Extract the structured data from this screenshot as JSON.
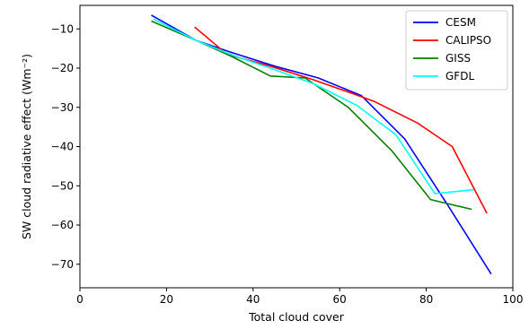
{
  "chart_data": {
    "type": "line",
    "title": "",
    "xlabel": "Total cloud cover",
    "ylabel": "SW cloud radiative effect (Wm⁻²)",
    "xlim": [
      0,
      100
    ],
    "ylim": [
      -76,
      -4
    ],
    "xticks": [
      0,
      20,
      40,
      60,
      80,
      100
    ],
    "yticks": [
      -10,
      -20,
      -30,
      -40,
      -50,
      -60,
      -70
    ],
    "grid": false,
    "legend_position": "top-right",
    "series": [
      {
        "name": "CESM",
        "color": "#0000ff",
        "x": [
          16.5,
          27,
          35,
          45,
          55,
          65,
          75,
          85,
          95
        ],
        "y": [
          -6.5,
          -13,
          -16,
          -19.5,
          -22.5,
          -27,
          -38,
          -55,
          -72.5
        ]
      },
      {
        "name": "CALIPSO",
        "color": "#ff0000",
        "x": [
          26.5,
          34,
          44,
          54,
          63,
          68,
          78,
          86,
          94
        ],
        "y": [
          -9.5,
          -16.5,
          -19.5,
          -23,
          -26.5,
          -28.5,
          -34,
          -40,
          -57
        ]
      },
      {
        "name": "GISS",
        "color": "#008000",
        "x": [
          16.5,
          27,
          35,
          44,
          52,
          62,
          72,
          81,
          90.5
        ],
        "y": [
          -8,
          -13,
          -17,
          -22,
          -22.5,
          -30,
          -41,
          -53.5,
          -56
        ]
      },
      {
        "name": "GFDL",
        "color": "#00ffff",
        "x": [
          17,
          27,
          36,
          44,
          54,
          64,
          73,
          82,
          91
        ],
        "y": [
          -7.5,
          -13,
          -17,
          -20,
          -24,
          -29.5,
          -37,
          -52,
          -51
        ]
      }
    ]
  }
}
